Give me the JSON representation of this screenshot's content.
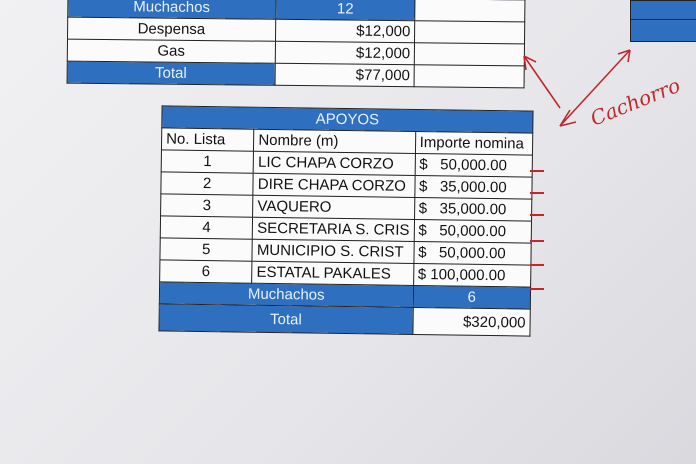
{
  "top_table": {
    "rows": [
      {
        "label": "Muchachos",
        "value": "12",
        "style": "blue"
      },
      {
        "label": "Despensa",
        "value": "$12,000"
      },
      {
        "label": "Gas",
        "value": "$12,000"
      },
      {
        "label": "Total",
        "value": "$77,000",
        "style": "total"
      }
    ]
  },
  "apoyos": {
    "title": "APOYOS",
    "headers": [
      "No. Lista",
      "Nombre (m)",
      "Importe nomina"
    ],
    "rows": [
      {
        "no": "1",
        "name": "LIC CHAPA CORZO",
        "amount": "$   50,000.00"
      },
      {
        "no": "2",
        "name": "DIRE CHAPA CORZO",
        "amount": "$   35,000.00"
      },
      {
        "no": "3",
        "name": "VAQUERO",
        "amount": "$   35,000.00"
      },
      {
        "no": "4",
        "name": "SECRETARIA S. CRIS",
        "amount": "$   50,000.00"
      },
      {
        "no": "5",
        "name": "MUNICIPIO S. CRIST",
        "amount": "$   50,000.00"
      },
      {
        "no": "6",
        "name": "ESTATAL PAKALES",
        "amount": "$ 100,000.00"
      }
    ],
    "muchachos_label": "Muchachos",
    "muchachos_value": "6",
    "total_label": "Total",
    "total_value": "$320,000"
  },
  "handwriting": {
    "text": "Cachorro",
    "color": "#c0282c"
  },
  "colors": {
    "header_blue": "#2f6fbf"
  }
}
